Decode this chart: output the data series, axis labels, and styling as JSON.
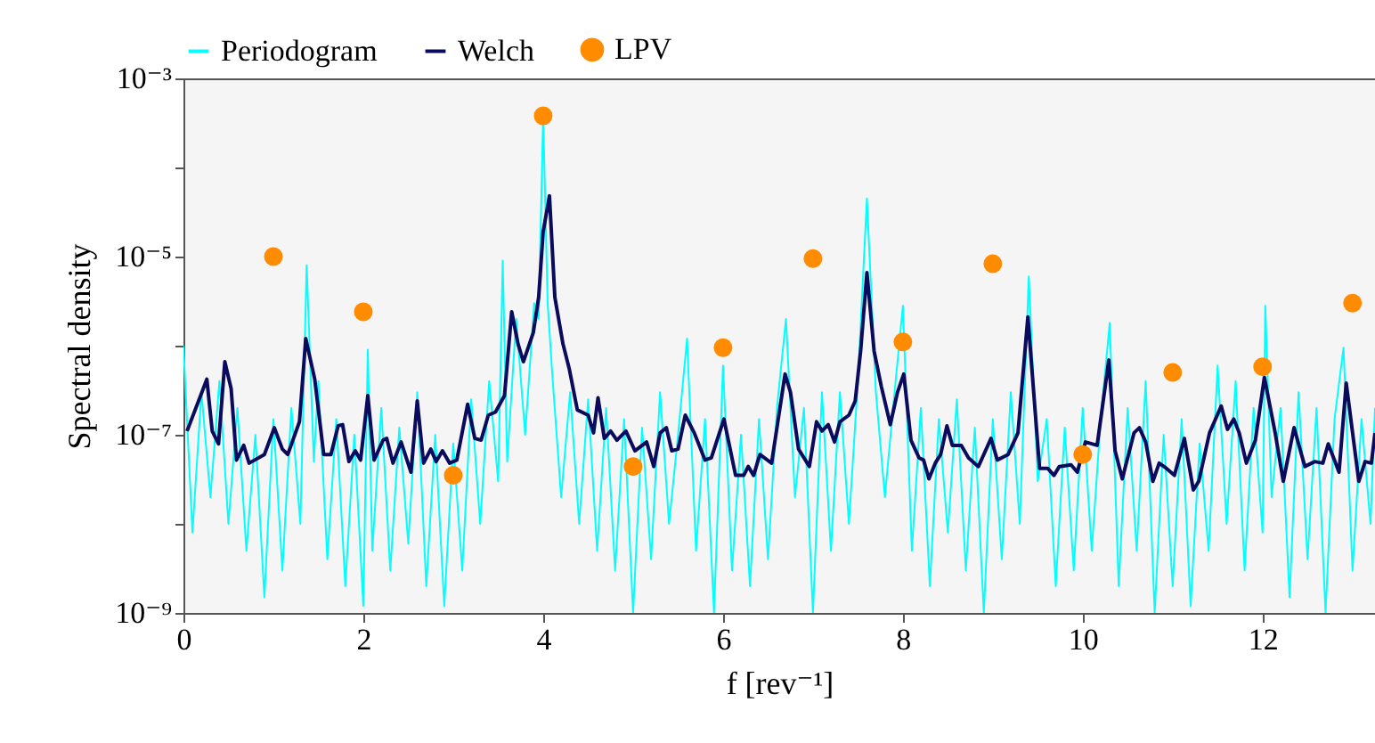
{
  "chart_data": {
    "type": "line",
    "xlabel": "f [rev⁻¹]",
    "ylabel": "Spectral density",
    "log": "y",
    "legend": "top",
    "grid": false,
    "xlim": [
      0,
      13.25
    ],
    "xticks": [
      0,
      2,
      4,
      6,
      8,
      10,
      12
    ],
    "ylim": [
      1e-09,
      0.001
    ],
    "yticks": [
      {
        "value": 0.001,
        "label": "10⁻³"
      },
      {
        "value": 0.0001,
        "label": null
      },
      {
        "value": 1e-05,
        "label": "10⁻⁵"
      },
      {
        "value": 1e-06,
        "label": null
      },
      {
        "value": 1e-07,
        "label": "10⁻⁷"
      },
      {
        "value": 1e-08,
        "label": null
      },
      {
        "value": 1e-09,
        "label": "10⁻⁹"
      }
    ],
    "series": [
      {
        "name": "Periodogram",
        "color": "#00ffff",
        "line_style": "solid",
        "x": [
          0,
          0.1,
          0.2,
          0.3,
          0.4,
          0.5,
          0.6,
          0.7,
          0.8,
          0.9,
          1.0,
          1.1,
          1.2,
          1.3,
          1.37,
          1.45,
          1.5,
          1.6,
          1.7,
          1.8,
          1.9,
          2.0,
          2.05,
          2.1,
          2.2,
          2.3,
          2.4,
          2.5,
          2.6,
          2.7,
          2.8,
          2.9,
          3.0,
          3.1,
          3.2,
          3.3,
          3.4,
          3.5,
          3.55,
          3.6,
          3.7,
          3.8,
          3.9,
          3.95,
          4.0,
          4.05,
          4.1,
          4.2,
          4.3,
          4.4,
          4.5,
          4.6,
          4.7,
          4.8,
          4.9,
          5.0,
          5.1,
          5.2,
          5.3,
          5.4,
          5.5,
          5.6,
          5.7,
          5.8,
          5.9,
          6.0,
          6.1,
          6.2,
          6.3,
          6.4,
          6.5,
          6.6,
          6.7,
          6.8,
          6.9,
          7.0,
          7.1,
          7.2,
          7.3,
          7.4,
          7.5,
          7.6,
          7.7,
          7.8,
          7.9,
          8.0,
          8.1,
          8.2,
          8.3,
          8.4,
          8.5,
          8.6,
          8.7,
          8.8,
          8.9,
          9.0,
          9.1,
          9.2,
          9.3,
          9.4,
          9.5,
          9.6,
          9.7,
          9.8,
          9.9,
          10.0,
          10.1,
          10.2,
          10.3,
          10.4,
          10.5,
          10.6,
          10.7,
          10.8,
          10.9,
          11.0,
          11.1,
          11.2,
          11.3,
          11.4,
          11.5,
          11.6,
          11.7,
          11.8,
          11.9,
          12.0,
          12.03,
          12.1,
          12.2,
          12.3,
          12.4,
          12.5,
          12.6,
          12.7,
          12.8,
          12.9,
          13.0,
          13.1,
          13.2,
          13.25
        ],
        "values": [
          1e-06,
          8e-09,
          3e-07,
          2e-08,
          4e-07,
          1e-08,
          2e-07,
          5e-09,
          1e-07,
          1.5e-09,
          1.5e-07,
          3e-09,
          2e-07,
          1e-08,
          8e-06,
          5e-08,
          4e-07,
          4e-09,
          1.5e-07,
          2e-09,
          1e-07,
          1.2e-09,
          9e-07,
          5e-09,
          2e-07,
          3e-09,
          1.2e-07,
          6e-09,
          3e-07,
          2e-09,
          1e-07,
          1.2e-09,
          8e-08,
          3e-09,
          2.5e-07,
          1e-08,
          4e-07,
          3e-08,
          9e-06,
          5e-08,
          2e-06,
          1e-07,
          3e-06,
          2e-06,
          0.00038,
          3e-06,
          5e-07,
          2e-08,
          3e-07,
          1e-08,
          2.5e-07,
          5e-09,
          2e-07,
          3e-09,
          1.5e-07,
          1e-09,
          1.2e-07,
          4e-09,
          3e-07,
          1e-08,
          1e-07,
          1.2e-06,
          5e-09,
          1.5e-07,
          1e-09,
          6e-07,
          3e-09,
          1e-07,
          2e-09,
          1.5e-07,
          4e-09,
          2e-07,
          2e-06,
          2e-08,
          2e-07,
          1e-09,
          3e-07,
          5e-09,
          3e-07,
          1e-08,
          4e-07,
          4.5e-05,
          3e-07,
          2e-08,
          2.5e-07,
          2.8e-06,
          5e-09,
          2e-07,
          2e-09,
          1.5e-07,
          8e-09,
          2.5e-07,
          3e-09,
          1.2e-07,
          1e-09,
          1.5e-07,
          4e-09,
          3e-07,
          1e-08,
          6e-06,
          3e-08,
          1.5e-07,
          2e-09,
          1.2e-07,
          3e-09,
          2e-07,
          5e-09,
          1.5e-07,
          1.8e-06,
          2e-09,
          2e-07,
          5e-09,
          4e-07,
          1e-09,
          1e-07,
          2e-09,
          1.5e-07,
          1.2e-09,
          8e-08,
          5e-09,
          6e-07,
          1e-08,
          4e-07,
          3e-09,
          2e-07,
          8e-09,
          2.8e-06,
          2e-08,
          2e-07,
          1.5e-09,
          3e-07,
          4e-09,
          2e-07,
          1e-09,
          1.5e-07,
          9.5e-07,
          3e-09,
          1.5e-07,
          1e-08,
          2e-07
        ]
      },
      {
        "name": "Welch",
        "color": "#0b0b5e",
        "line_style": "solid",
        "x": [
          0.04,
          0.26,
          0.32,
          0.39,
          0.46,
          0.53,
          0.59,
          0.67,
          0.73,
          0.9,
          1.01,
          1.1,
          1.16,
          1.29,
          1.36,
          1.46,
          1.56,
          1.64,
          1.72,
          1.77,
          1.84,
          1.91,
          1.97,
          2.05,
          2.12,
          2.22,
          2.26,
          2.33,
          2.42,
          2.53,
          2.6,
          2.67,
          2.75,
          2.81,
          2.88,
          2.96,
          3.04,
          3.16,
          3.24,
          3.31,
          3.39,
          3.47,
          3.57,
          3.65,
          3.72,
          3.78,
          3.89,
          3.95,
          4.0,
          4.07,
          4.13,
          4.22,
          4.29,
          4.38,
          4.5,
          4.56,
          4.61,
          4.68,
          4.75,
          4.82,
          4.92,
          5.02,
          5.15,
          5.23,
          5.3,
          5.37,
          5.43,
          5.5,
          5.58,
          5.68,
          5.8,
          5.87,
          6.01,
          6.14,
          6.23,
          6.28,
          6.34,
          6.41,
          6.54,
          6.69,
          6.75,
          6.84,
          6.96,
          7.04,
          7.1,
          7.17,
          7.24,
          7.3,
          7.4,
          7.47,
          7.53,
          7.6,
          7.68,
          7.76,
          7.86,
          7.94,
          8.01,
          8.09,
          8.18,
          8.23,
          8.29,
          8.36,
          8.42,
          8.49,
          8.55,
          8.65,
          8.73,
          8.84,
          8.98,
          9.05,
          9.17,
          9.28,
          9.39,
          9.52,
          9.61,
          9.68,
          9.74,
          9.87,
          9.94,
          10.03,
          10.16,
          10.29,
          10.36,
          10.44,
          10.57,
          10.63,
          10.7,
          10.78,
          10.85,
          10.93,
          11.02,
          11.13,
          11.23,
          11.29,
          11.41,
          11.54,
          11.61,
          11.68,
          11.74,
          11.82,
          11.92,
          12.02,
          12.14,
          12.23,
          12.35,
          12.47,
          12.58,
          12.67,
          12.73,
          12.85,
          12.93,
          13.07,
          13.14,
          13.21,
          13.25
        ],
        "values": [
          1.1e-07,
          4.2e-07,
          1.1e-07,
          7.9e-08,
          6.6e-07,
          3.3e-07,
          5.2e-08,
          7.6e-08,
          4.8e-08,
          6e-08,
          1.2e-07,
          6.9e-08,
          6e-08,
          1.4e-07,
          1.2e-06,
          4.2e-07,
          6e-08,
          6e-08,
          1.26e-07,
          1.3e-07,
          5e-08,
          6.6e-08,
          5.2e-08,
          2.75e-07,
          5.2e-08,
          8.7e-08,
          9.1e-08,
          4.8e-08,
          8.3e-08,
          3.8e-08,
          2.4e-07,
          4.8e-08,
          6.9e-08,
          5e-08,
          6.6e-08,
          4.8e-08,
          5.2e-08,
          2.2e-07,
          9.1e-08,
          8.7e-08,
          1.66e-07,
          1.8e-07,
          2.75e-07,
          2.4e-06,
          1.05e-06,
          6.6e-07,
          1.4e-06,
          3.5e-06,
          1.9e-05,
          4.8e-05,
          3.5e-06,
          1.05e-06,
          5.5e-07,
          1.9e-07,
          1.66e-07,
          1.05e-07,
          2.6e-07,
          9.1e-08,
          1.1e-07,
          8.7e-08,
          1.1e-07,
          6.6e-08,
          8.3e-08,
          4.4e-08,
          1.05e-07,
          1.2e-07,
          6.6e-08,
          6.9e-08,
          1.66e-07,
          1.05e-07,
          5.2e-08,
          5.5e-08,
          1.5e-07,
          3.5e-08,
          3.5e-08,
          4.4e-08,
          3.5e-08,
          6e-08,
          4.8e-08,
          4.8e-07,
          3e-07,
          6.9e-08,
          4.4e-08,
          1.4e-07,
          1.1e-07,
          1.3e-07,
          8.3e-08,
          1.4e-07,
          1.66e-07,
          2.4e-07,
          8.7e-07,
          6.6e-06,
          8.7e-07,
          3.5e-07,
          1.3e-07,
          3e-07,
          4.8e-07,
          8.7e-08,
          5.5e-08,
          5.2e-08,
          3.2e-08,
          4.8e-08,
          6e-08,
          1.26e-07,
          7.6e-08,
          7.6e-08,
          5.5e-08,
          4.4e-08,
          9.1e-08,
          5.2e-08,
          6e-08,
          1.05e-07,
          2.1e-06,
          4.2e-08,
          4.2e-08,
          3.5e-08,
          4.4e-08,
          4.6e-08,
          3.8e-08,
          8.3e-08,
          7.6e-08,
          6.9e-07,
          6.6e-08,
          3.2e-08,
          1.05e-07,
          1.2e-07,
          8.3e-08,
          3e-08,
          4.8e-08,
          4.2e-08,
          3.5e-08,
          9.1e-08,
          2.4e-08,
          3e-08,
          1.05e-07,
          2.1e-07,
          1.15e-07,
          1.5e-07,
          1.05e-07,
          4.8e-08,
          8.7e-08,
          4.4e-07,
          1.05e-07,
          3e-08,
          1.2e-07,
          4.4e-08,
          5e-08,
          4.8e-08,
          7.9e-08,
          3.8e-08,
          3.8e-07,
          3e-08,
          5e-08,
          4.8e-08,
          1.05e-07
        ]
      },
      {
        "name": "LPV",
        "type": "scatter",
        "marker": "circle",
        "color": "#ff8c00",
        "x": [
          1,
          2,
          3,
          4,
          5,
          6,
          7,
          8,
          9,
          10,
          11,
          12,
          13
        ],
        "values": [
          1e-05,
          2.4e-06,
          3.5e-08,
          0.00038,
          4.4e-08,
          9.5e-07,
          9.5e-06,
          1.1e-06,
          8.3e-06,
          6e-08,
          5e-07,
          5.8e-07,
          3e-06
        ]
      }
    ]
  }
}
